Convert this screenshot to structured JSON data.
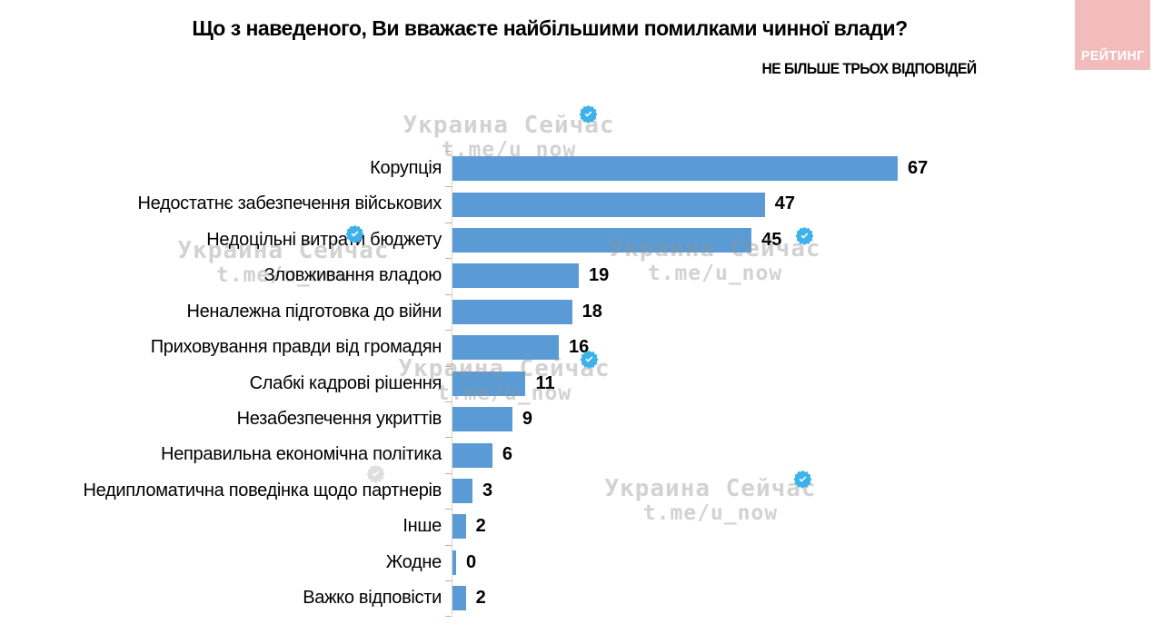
{
  "page": {
    "title": "Що з наведеного, Ви вважаєте найбільшими помилками чинної влади?",
    "subtitle": "НЕ БІЛЬШЕ ТРЬОХ ВІДПОВІДЕЙ"
  },
  "logo": {
    "label": "РЕЙТИНГ",
    "bg_color": "#f2bcbc",
    "text_color": "#ffffff"
  },
  "watermark": {
    "line1": "Украина Сейчас",
    "line2": "t.me/u_now",
    "check_color": "#3db2ea",
    "check_gray_color": "#cfcfcf"
  },
  "chart_data": {
    "type": "bar",
    "orientation": "horizontal",
    "title": "Що з наведеного, Ви вважаєте найбільшими помилками чинної влади?",
    "note": "НЕ БІЛЬШЕ ТРЬОХ ВІДПОВІДЕЙ",
    "categories": [
      "Корупція",
      "Недостатнє забезпечення військових",
      "Недоцільні витрати бюджету",
      "Зловживання владою",
      "Неналежна підготовка до війни",
      "Приховування правди від громадян",
      "Слабкі кадрові рішення",
      "Незабезпечення укриттів",
      "Неправильна економічна політика",
      "Недипломатична поведінка щодо партнерів",
      "Інше",
      "Жодне",
      "Важко відповісти"
    ],
    "values": [
      67,
      47,
      45,
      19,
      18,
      16,
      11,
      9,
      6,
      3,
      2,
      0,
      2
    ],
    "xlim": [
      0,
      70
    ],
    "bar_color": "#5b9bd5",
    "value_labels": true,
    "grid": false,
    "legend": false
  }
}
